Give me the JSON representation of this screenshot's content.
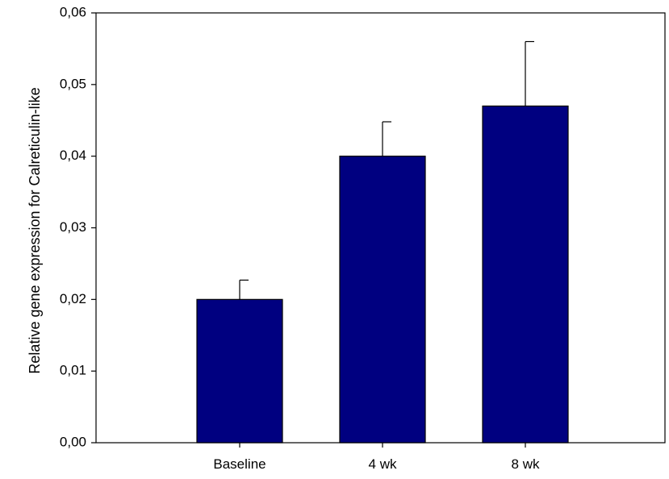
{
  "chart_data": {
    "type": "bar",
    "categories": [
      "Baseline",
      "4 wk",
      "8 wk"
    ],
    "values": [
      0.02,
      0.04,
      0.047
    ],
    "error_upper": [
      0.0227,
      0.0448,
      0.056
    ],
    "ylabel": "Relative gene expression for Calreticulin-like",
    "xlabel": "",
    "title": "",
    "ylim": [
      0,
      0.06
    ],
    "yticks": [
      0.0,
      0.01,
      0.02,
      0.03,
      0.04,
      0.05,
      0.06
    ],
    "ytick_labels": [
      "0,00",
      "0,01",
      "0,02",
      "0,03",
      "0,04",
      "0,05",
      "0,06"
    ],
    "bar_color": "#000080",
    "grid": false,
    "legend": "none"
  }
}
